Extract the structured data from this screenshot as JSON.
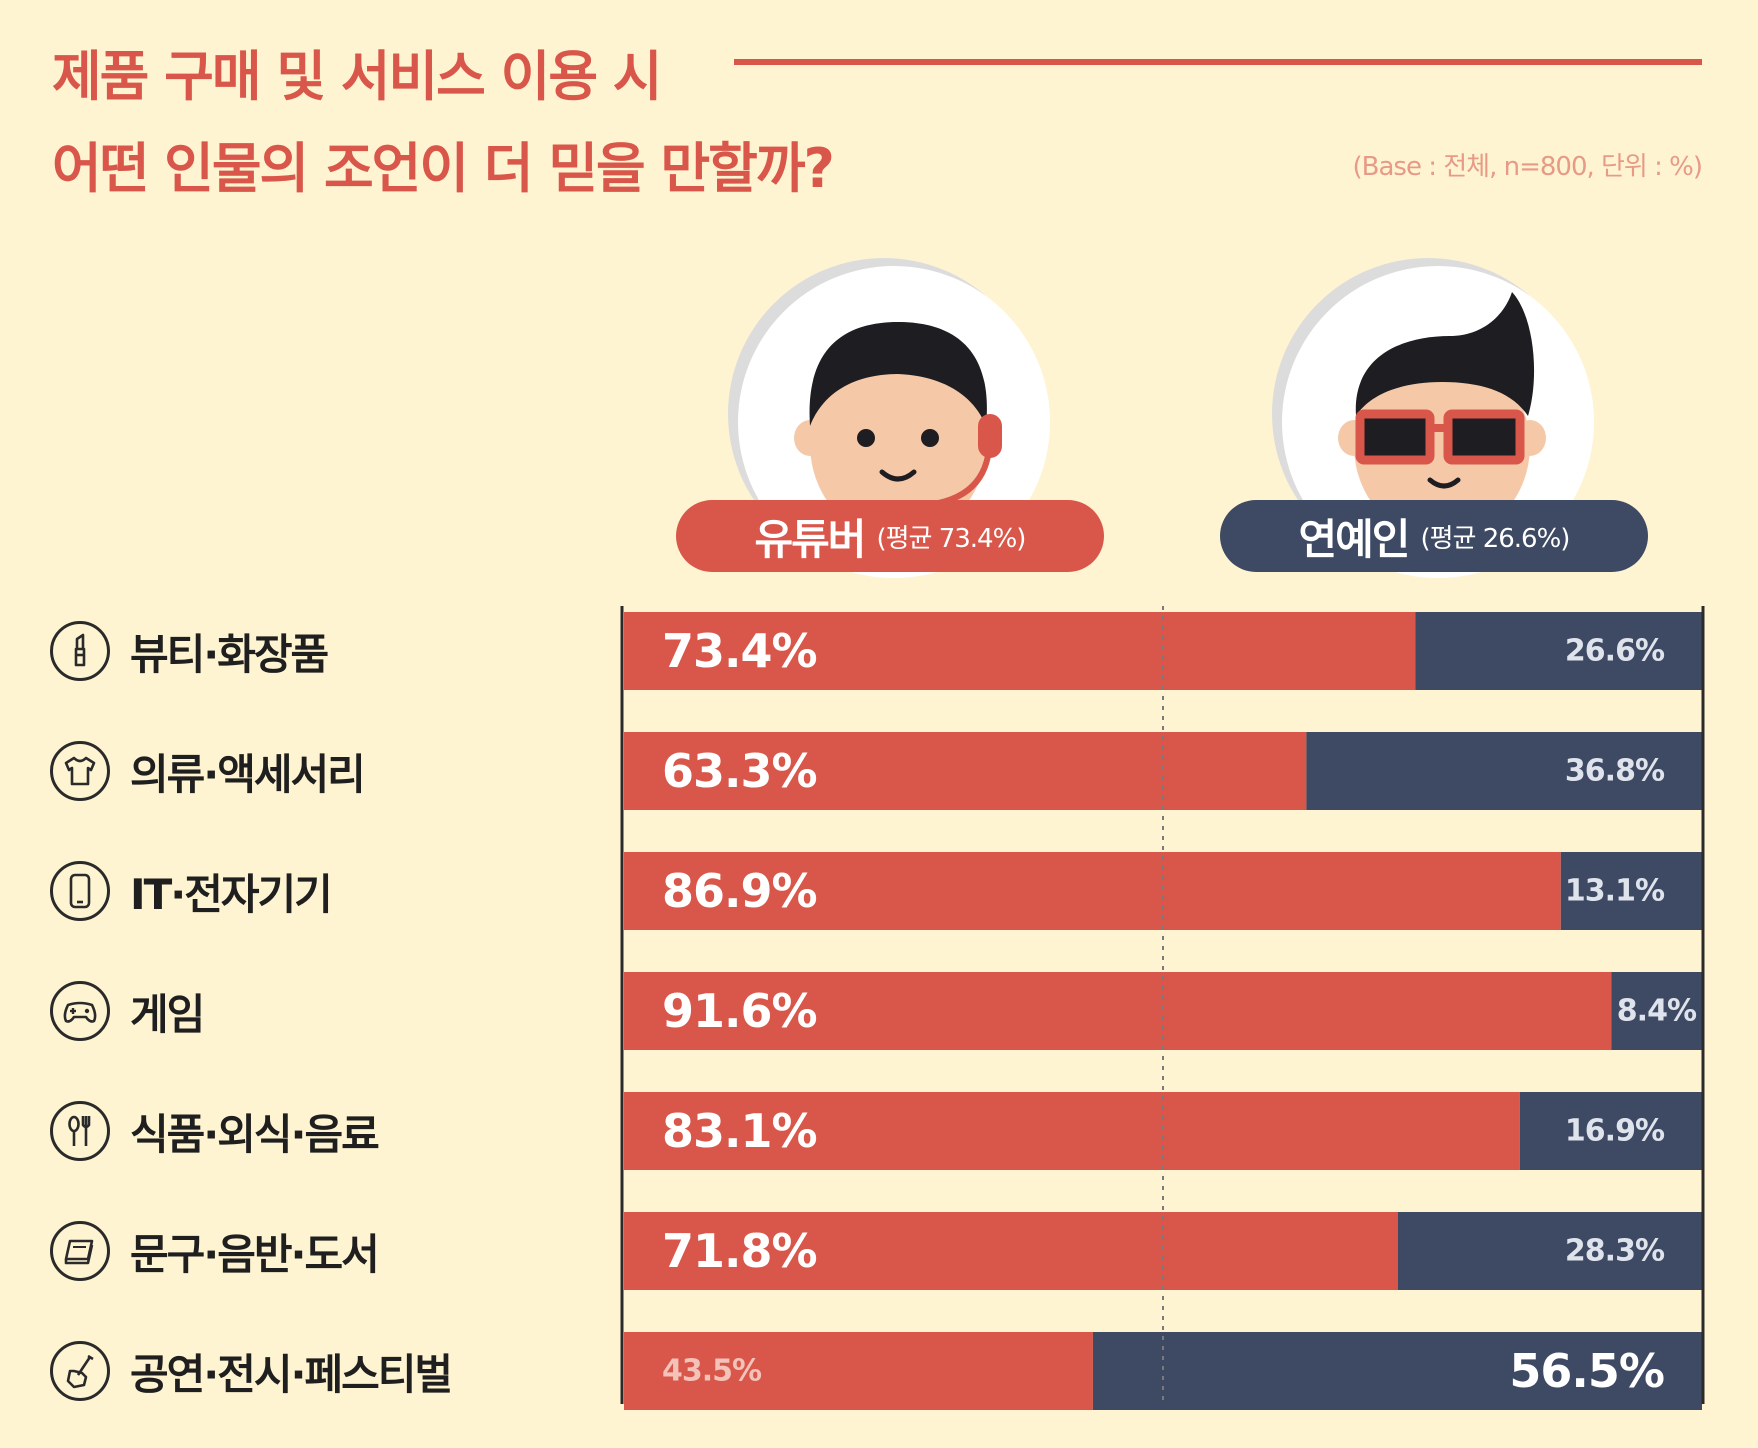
{
  "title": {
    "line1": "제품 구매 및 서비스 이용 시",
    "line2": "어떤 인물의 조언이 더 믿을 만할까?",
    "note": "(Base : 전체, n=800, 단위 : %)"
  },
  "groups": [
    {
      "name": "유튜버",
      "avg_label": "(평균 73.4%)",
      "color": "#d9574a",
      "icon": "youtuber-headset-face-icon"
    },
    {
      "name": "연예인",
      "avg_label": "(평균 26.6%)",
      "color": "#3e4a63",
      "icon": "celebrity-sunglasses-face-icon"
    }
  ],
  "chart_data": {
    "type": "bar",
    "stacked": true,
    "orientation": "horizontal",
    "xlim": [
      0,
      100
    ],
    "categories": [
      "뷰티·화장품",
      "의류·액세서리",
      "IT·전자기기",
      "게임",
      "식품·외식·음료",
      "문구·음반·도서",
      "공연·전시·페스티벌"
    ],
    "category_icons": [
      "lipstick-icon",
      "tshirt-icon",
      "smartphone-icon",
      "gamepad-icon",
      "spoon-fork-icon",
      "book-icon",
      "guitar-icon"
    ],
    "series": [
      {
        "name": "유튜버",
        "color": "#d9574a",
        "values": [
          73.4,
          63.3,
          86.9,
          91.6,
          83.1,
          71.8,
          43.5
        ],
        "labels": [
          "73.4%",
          "63.3%",
          "86.9%",
          "91.6%",
          "83.1%",
          "71.8%",
          "43.5%"
        ]
      },
      {
        "name": "연예인",
        "color": "#3e4a63",
        "values": [
          26.6,
          36.8,
          13.1,
          8.4,
          16.9,
          28.3,
          56.5
        ],
        "labels": [
          "26.6%",
          "36.8%",
          "13.1%",
          "8.4%",
          "16.9%",
          "28.3%",
          "56.5%"
        ]
      }
    ],
    "reference_line": 50,
    "grid": false
  }
}
